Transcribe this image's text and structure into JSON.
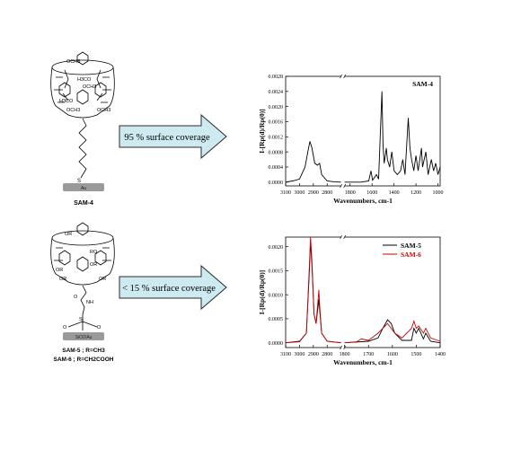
{
  "molecule_top": {
    "ome_groups": [
      "OCH3",
      "H3CO",
      "OCH3",
      "H3CO",
      "OCH3",
      "OCH3"
    ],
    "linker_atom": "S",
    "substrate": "Au",
    "caption": "SAM-4"
  },
  "molecule_bottom": {
    "or_groups": [
      "OR",
      "RO",
      "OR",
      "OR",
      "OR",
      "OR"
    ],
    "linker_atoms": [
      "NH",
      "O",
      "Si",
      "O",
      "O"
    ],
    "substrate": "SiO2/Au",
    "caption_line1": "SAM-5 ; R=CH3",
    "caption_line2": "SAM-6 ; R=CH2COOH"
  },
  "arrows": {
    "top_label": "95 % surface coverage",
    "bottom_label": "< 15 % surface coverage",
    "fill_color": "#cdeaf0",
    "stroke_color": "#2a2a2a"
  },
  "chart_data": [
    {
      "type": "line",
      "name": "top-spectrum",
      "legend": "SAM-4",
      "xlabel": "Wavenumbers, cm-1",
      "ylabel": "I-[Rp(d)/Rp(0)]",
      "axis_break": true,
      "segments": [
        {
          "xlim": [
            3100,
            2700
          ],
          "xticks": [
            "3100",
            "3000",
            "2900",
            "2800"
          ],
          "xtick_values": [
            3100,
            3000,
            2900,
            2800
          ],
          "points": [
            [
              3100,
              0.0
            ],
            [
              3050,
              3e-05
            ],
            [
              3000,
              8e-05
            ],
            [
              2960,
              0.0004
            ],
            [
              2940,
              0.0008
            ],
            [
              2925,
              0.00108
            ],
            [
              2910,
              0.0009
            ],
            [
              2890,
              0.0005
            ],
            [
              2870,
              0.00045
            ],
            [
              2855,
              0.0005
            ],
            [
              2840,
              0.0002
            ],
            [
              2800,
              3e-05
            ],
            [
              2750,
              1e-05
            ],
            [
              2700,
              0.0
            ]
          ]
        },
        {
          "xlim": [
            1850,
            980
          ],
          "xticks": [
            "1800",
            "1600",
            "1400",
            "1200",
            "1000"
          ],
          "xtick_values": [
            1800,
            1600,
            1400,
            1200,
            1000
          ],
          "points": [
            [
              1850,
              0.0
            ],
            [
              1700,
              0.0
            ],
            [
              1630,
              3e-05
            ],
            [
              1610,
              0.0003
            ],
            [
              1595,
              5e-05
            ],
            [
              1560,
              0.0002
            ],
            [
              1540,
              8e-05
            ],
            [
              1510,
              0.0024
            ],
            [
              1500,
              0.001
            ],
            [
              1490,
              0.0005
            ],
            [
              1470,
              0.0009
            ],
            [
              1460,
              0.0006
            ],
            [
              1440,
              0.0004
            ],
            [
              1420,
              0.0008
            ],
            [
              1400,
              0.0003
            ],
            [
              1370,
              0.0002
            ],
            [
              1340,
              0.0003
            ],
            [
              1320,
              0.0006
            ],
            [
              1300,
              0.0002
            ],
            [
              1270,
              0.0017
            ],
            [
              1255,
              0.0009
            ],
            [
              1240,
              0.0006
            ],
            [
              1220,
              0.0003
            ],
            [
              1200,
              0.0007
            ],
            [
              1180,
              0.0003
            ],
            [
              1150,
              0.0009
            ],
            [
              1140,
              0.0004
            ],
            [
              1110,
              0.0008
            ],
            [
              1090,
              0.0002
            ],
            [
              1060,
              0.0006
            ],
            [
              1040,
              0.0003
            ],
            [
              1020,
              0.0005
            ],
            [
              1000,
              0.0002
            ],
            [
              980,
              0.0004
            ]
          ]
        }
      ],
      "ylim": [
        -0.0001,
        0.0028
      ],
      "yticks": [
        "0.0000",
        "0.0004",
        "0.0008",
        "0.0012",
        "0.0016",
        "0.0020",
        "0.0024",
        "0.0028"
      ],
      "ytick_values": [
        0.0,
        0.0004,
        0.0008,
        0.0012,
        0.0016,
        0.002,
        0.0024,
        0.0028
      ],
      "series_color": "#000000"
    },
    {
      "type": "line",
      "name": "bottom-spectrum",
      "xlabel": "Wavenumbers, cm-1",
      "ylabel": "I-[Rp(d)/Rp(0)]",
      "axis_break": true,
      "series": [
        {
          "name": "SAM-5",
          "color": "#000000"
        },
        {
          "name": "SAM-6",
          "color": "#cc0000"
        }
      ],
      "segments": [
        {
          "xlim": [
            3100,
            2700
          ],
          "xticks": [
            "3100",
            "3000",
            "2900",
            "2800"
          ],
          "xtick_values": [
            3100,
            3000,
            2900,
            2800
          ],
          "values": {
            "SAM-5": [
              [
                3100,
                0.0
              ],
              [
                3000,
                3e-05
              ],
              [
                2950,
                0.0002
              ],
              [
                2930,
                0.0014
              ],
              [
                2920,
                0.0021
              ],
              [
                2910,
                0.0016
              ],
              [
                2895,
                0.0006
              ],
              [
                2880,
                0.0004
              ],
              [
                2860,
                0.0009
              ],
              [
                2855,
                0.0007
              ],
              [
                2840,
                0.0002
              ],
              [
                2800,
                3e-05
              ],
              [
                2700,
                0.0
              ]
            ],
            "SAM-6": [
              [
                3100,
                0.0
              ],
              [
                3000,
                2e-05
              ],
              [
                2950,
                0.0002
              ],
              [
                2930,
                0.0015
              ],
              [
                2920,
                0.0022
              ],
              [
                2910,
                0.0017
              ],
              [
                2895,
                0.0006
              ],
              [
                2880,
                0.0004
              ],
              [
                2860,
                0.0011
              ],
              [
                2855,
                0.0008
              ],
              [
                2840,
                0.0002
              ],
              [
                2800,
                3e-05
              ],
              [
                2700,
                0.0
              ]
            ]
          }
        },
        {
          "xlim": [
            1800,
            1400
          ],
          "xticks": [
            "1800",
            "1700",
            "1600",
            "1500",
            "1400"
          ],
          "xtick_values": [
            1800,
            1700,
            1600,
            1500,
            1400
          ],
          "values": {
            "SAM-5": [
              [
                1800,
                0.0
              ],
              [
                1700,
                3e-05
              ],
              [
                1660,
                0.0001
              ],
              [
                1640,
                0.0003
              ],
              [
                1620,
                0.00048
              ],
              [
                1605,
                0.0004
              ],
              [
                1590,
                0.0002
              ],
              [
                1560,
                5e-05
              ],
              [
                1520,
                5e-05
              ],
              [
                1510,
                0.0003
              ],
              [
                1500,
                0.0002
              ],
              [
                1490,
                0.0003
              ],
              [
                1470,
                8e-05
              ],
              [
                1460,
                0.0002
              ],
              [
                1440,
                3e-05
              ],
              [
                1400,
                0.0
              ]
            ],
            "SAM-6": [
              [
                1800,
                0.0
              ],
              [
                1750,
                2e-05
              ],
              [
                1730,
                8e-05
              ],
              [
                1700,
                5e-05
              ],
              [
                1660,
                0.0002
              ],
              [
                1640,
                0.0003
              ],
              [
                1620,
                0.0004
              ],
              [
                1605,
                0.0003
              ],
              [
                1590,
                0.0002
              ],
              [
                1560,
                0.0001
              ],
              [
                1540,
                0.0002
              ],
              [
                1520,
                0.0003
              ],
              [
                1510,
                0.00045
              ],
              [
                1500,
                0.0003
              ],
              [
                1490,
                0.00035
              ],
              [
                1470,
                0.0002
              ],
              [
                1460,
                0.0003
              ],
              [
                1440,
                0.0001
              ],
              [
                1400,
                3e-05
              ]
            ]
          }
        }
      ],
      "ylim": [
        -0.0001,
        0.0022
      ],
      "yticks": [
        "0.0000",
        "0.0005",
        "0.0010",
        "0.0015",
        "0.0020"
      ],
      "ytick_values": [
        0.0,
        0.0005,
        0.001,
        0.0015,
        0.002
      ]
    }
  ]
}
